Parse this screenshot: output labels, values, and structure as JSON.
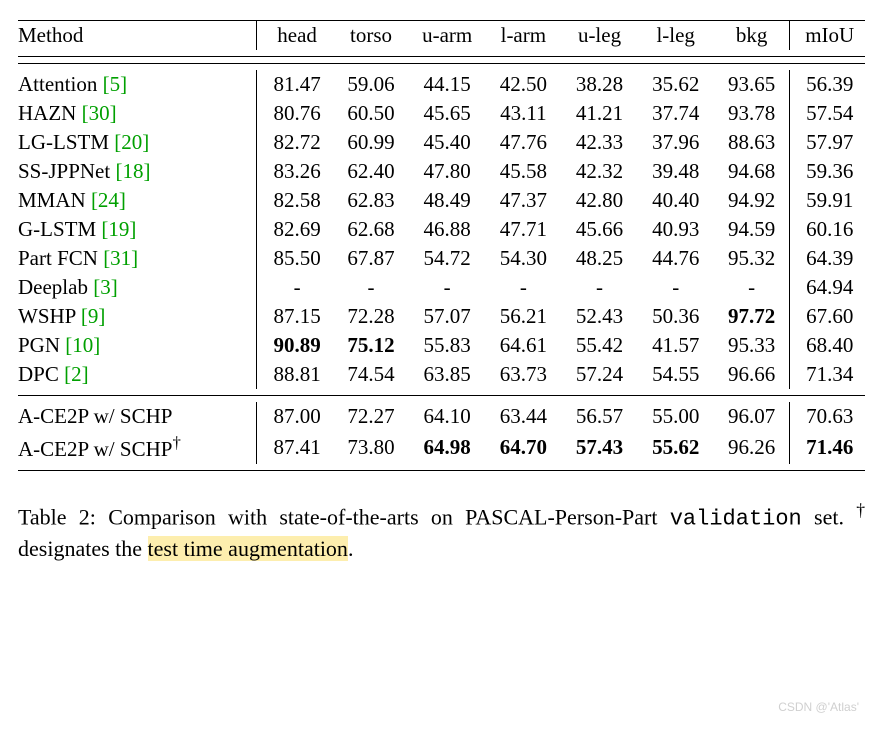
{
  "table": {
    "headers": {
      "method": "Method",
      "cols": [
        "head",
        "torso",
        "u-arm",
        "l-arm",
        "u-leg",
        "l-leg",
        "bkg"
      ],
      "miou": "mIoU"
    },
    "rows": [
      {
        "method": "Attention",
        "cite": "[5]",
        "vals": [
          "81.47",
          "59.06",
          "44.15",
          "42.50",
          "38.28",
          "35.62",
          "93.65"
        ],
        "miou": "56.39",
        "bold": []
      },
      {
        "method": "HAZN",
        "cite": "[30]",
        "vals": [
          "80.76",
          "60.50",
          "45.65",
          "43.11",
          "41.21",
          "37.74",
          "93.78"
        ],
        "miou": "57.54",
        "bold": []
      },
      {
        "method": "LG-LSTM",
        "cite": "[20]",
        "vals": [
          "82.72",
          "60.99",
          "45.40",
          "47.76",
          "42.33",
          "37.96",
          "88.63"
        ],
        "miou": "57.97",
        "bold": []
      },
      {
        "method": "SS-JPPNet",
        "cite": "[18]",
        "vals": [
          "83.26",
          "62.40",
          "47.80",
          "45.58",
          "42.32",
          "39.48",
          "94.68"
        ],
        "miou": "59.36",
        "bold": []
      },
      {
        "method": "MMAN",
        "cite": "[24]",
        "vals": [
          "82.58",
          "62.83",
          "48.49",
          "47.37",
          "42.80",
          "40.40",
          "94.92"
        ],
        "miou": "59.91",
        "bold": []
      },
      {
        "method": "G-LSTM",
        "cite": "[19]",
        "vals": [
          "82.69",
          "62.68",
          "46.88",
          "47.71",
          "45.66",
          "40.93",
          "94.59"
        ],
        "miou": "60.16",
        "bold": []
      },
      {
        "method": "Part FCN",
        "cite": "[31]",
        "vals": [
          "85.50",
          "67.87",
          "54.72",
          "54.30",
          "48.25",
          "44.76",
          "95.32"
        ],
        "miou": "64.39",
        "bold": []
      },
      {
        "method": "Deeplab",
        "cite": "[3]",
        "vals": [
          "-",
          "-",
          "-",
          "-",
          "-",
          "-",
          "-"
        ],
        "miou": "64.94",
        "bold": []
      },
      {
        "method": "WSHP",
        "cite": "[9]",
        "vals": [
          "87.15",
          "72.28",
          "57.07",
          "56.21",
          "52.43",
          "50.36",
          "97.72"
        ],
        "miou": "67.60",
        "bold": [
          6
        ]
      },
      {
        "method": "PGN",
        "cite": "[10]",
        "vals": [
          "90.89",
          "75.12",
          "55.83",
          "64.61",
          "55.42",
          "41.57",
          "95.33"
        ],
        "miou": "68.40",
        "bold": [
          0,
          1
        ]
      },
      {
        "method": "DPC",
        "cite": "[2]",
        "vals": [
          "88.81",
          "74.54",
          "63.85",
          "63.73",
          "57.24",
          "54.55",
          "96.66"
        ],
        "miou": "71.34",
        "bold": []
      }
    ],
    "ours": [
      {
        "method": "A-CE2P w/ SCHP",
        "dagger": false,
        "vals": [
          "87.00",
          "72.27",
          "64.10",
          "63.44",
          "56.57",
          "55.00",
          "96.07"
        ],
        "miou": "70.63",
        "bold": [],
        "miou_bold": false
      },
      {
        "method": "A-CE2P w/ SCHP",
        "dagger": true,
        "vals": [
          "87.41",
          "73.80",
          "64.98",
          "64.70",
          "57.43",
          "55.62",
          "96.26"
        ],
        "miou": "71.46",
        "bold": [
          2,
          3,
          4,
          5
        ],
        "miou_bold": true
      }
    ]
  },
  "caption": {
    "label": "Table 2:",
    "text1": "Comparison with state-of-the-arts on PASCAL-Person-Part",
    "validation": "validation",
    "text2": "set.",
    "dagger": "†",
    "text3": "designates the",
    "highlight": "test time augmentation",
    "period": "."
  },
  "watermark": "CSDN @'Atlas'",
  "colors": {
    "citation": "#00a000",
    "highlight": "#fdeeae",
    "watermark": "#d0d0d0"
  }
}
